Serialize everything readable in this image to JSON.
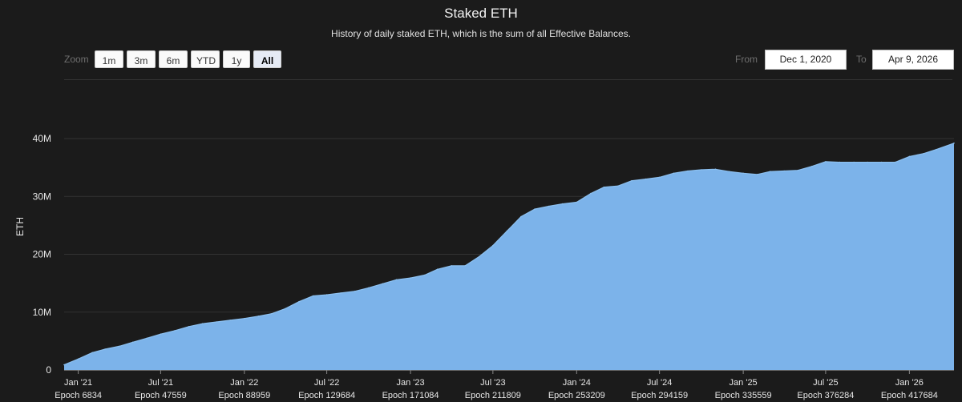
{
  "title": "Staked ETH",
  "subtitle": "History of daily staked ETH, which is the sum of all Effective Balances.",
  "zoom": {
    "label": "Zoom",
    "buttons": [
      "1m",
      "3m",
      "6m",
      "YTD",
      "1y",
      "All"
    ],
    "active": "All"
  },
  "range": {
    "from_label": "From",
    "from_value": "Dec 1, 2020",
    "to_label": "To",
    "to_value": "Apr 9, 2026"
  },
  "colors": {
    "background": "#1b1b1b",
    "series": "#7cb3ea",
    "gridline": "#333333"
  },
  "chart_data": {
    "type": "area",
    "title": "Staked ETH",
    "subtitle": "History of daily staked ETH, which is the sum of all Effective Balances.",
    "ylabel": "ETH",
    "xlabel": "",
    "ylim": [
      0,
      40000000
    ],
    "yticks": [
      {
        "value": 0,
        "label": "0"
      },
      {
        "value": 10000000,
        "label": "10M"
      },
      {
        "value": 20000000,
        "label": "20M"
      },
      {
        "value": 30000000,
        "label": "30M"
      },
      {
        "value": 40000000,
        "label": "40M"
      }
    ],
    "xlim": [
      "2020-12-01",
      "2026-04-09"
    ],
    "xticks": [
      {
        "date": "2021-01-01",
        "label": "Jan '21",
        "epoch": "Epoch 6834"
      },
      {
        "date": "2021-07-01",
        "label": "Jul '21",
        "epoch": "Epoch 47559"
      },
      {
        "date": "2022-01-01",
        "label": "Jan '22",
        "epoch": "Epoch 88959"
      },
      {
        "date": "2022-07-01",
        "label": "Jul '22",
        "epoch": "Epoch 129684"
      },
      {
        "date": "2023-01-01",
        "label": "Jan '23",
        "epoch": "Epoch 171084"
      },
      {
        "date": "2023-07-01",
        "label": "Jul '23",
        "epoch": "Epoch 211809"
      },
      {
        "date": "2024-01-01",
        "label": "Jan '24",
        "epoch": "Epoch 253209"
      },
      {
        "date": "2024-07-01",
        "label": "Jul '24",
        "epoch": "Epoch 294159"
      },
      {
        "date": "2025-01-01",
        "label": "Jan '25",
        "epoch": "Epoch 335559"
      },
      {
        "date": "2025-07-01",
        "label": "Jul '25",
        "epoch": "Epoch 376284"
      },
      {
        "date": "2026-01-01",
        "label": "Jan '26",
        "epoch": "Epoch 417684"
      }
    ],
    "grid": true,
    "series": [
      {
        "points": [
          {
            "x": "2020-12-01",
            "y": 900000
          },
          {
            "x": "2021-01-01",
            "y": 1900000
          },
          {
            "x": "2021-02-01",
            "y": 3000000
          },
          {
            "x": "2021-03-01",
            "y": 3600000
          },
          {
            "x": "2021-04-01",
            "y": 4100000
          },
          {
            "x": "2021-05-01",
            "y": 4800000
          },
          {
            "x": "2021-06-01",
            "y": 5500000
          },
          {
            "x": "2021-07-01",
            "y": 6200000
          },
          {
            "x": "2021-08-01",
            "y": 6800000
          },
          {
            "x": "2021-09-01",
            "y": 7500000
          },
          {
            "x": "2021-10-01",
            "y": 8000000
          },
          {
            "x": "2021-11-01",
            "y": 8300000
          },
          {
            "x": "2021-12-01",
            "y": 8600000
          },
          {
            "x": "2022-01-01",
            "y": 8900000
          },
          {
            "x": "2022-02-01",
            "y": 9300000
          },
          {
            "x": "2022-03-01",
            "y": 9700000
          },
          {
            "x": "2022-04-01",
            "y": 10600000
          },
          {
            "x": "2022-05-01",
            "y": 11800000
          },
          {
            "x": "2022-06-01",
            "y": 12800000
          },
          {
            "x": "2022-07-01",
            "y": 13000000
          },
          {
            "x": "2022-08-01",
            "y": 13300000
          },
          {
            "x": "2022-09-01",
            "y": 13600000
          },
          {
            "x": "2022-10-01",
            "y": 14200000
          },
          {
            "x": "2022-11-01",
            "y": 14900000
          },
          {
            "x": "2022-12-01",
            "y": 15600000
          },
          {
            "x": "2023-01-01",
            "y": 15900000
          },
          {
            "x": "2023-02-01",
            "y": 16400000
          },
          {
            "x": "2023-03-01",
            "y": 17400000
          },
          {
            "x": "2023-04-01",
            "y": 18000000
          },
          {
            "x": "2023-05-01",
            "y": 18000000
          },
          {
            "x": "2023-06-01",
            "y": 19600000
          },
          {
            "x": "2023-07-01",
            "y": 21500000
          },
          {
            "x": "2023-08-01",
            "y": 24000000
          },
          {
            "x": "2023-09-01",
            "y": 26500000
          },
          {
            "x": "2023-10-01",
            "y": 27800000
          },
          {
            "x": "2023-11-01",
            "y": 28300000
          },
          {
            "x": "2023-12-01",
            "y": 28700000
          },
          {
            "x": "2024-01-01",
            "y": 29000000
          },
          {
            "x": "2024-02-01",
            "y": 30500000
          },
          {
            "x": "2024-03-01",
            "y": 31600000
          },
          {
            "x": "2024-04-01",
            "y": 31800000
          },
          {
            "x": "2024-05-01",
            "y": 32700000
          },
          {
            "x": "2024-06-01",
            "y": 33000000
          },
          {
            "x": "2024-07-01",
            "y": 33300000
          },
          {
            "x": "2024-08-01",
            "y": 34000000
          },
          {
            "x": "2024-09-01",
            "y": 34400000
          },
          {
            "x": "2024-10-01",
            "y": 34600000
          },
          {
            "x": "2024-11-01",
            "y": 34700000
          },
          {
            "x": "2024-12-01",
            "y": 34300000
          },
          {
            "x": "2025-01-01",
            "y": 34000000
          },
          {
            "x": "2025-02-01",
            "y": 33800000
          },
          {
            "x": "2025-03-01",
            "y": 34300000
          },
          {
            "x": "2025-04-01",
            "y": 34400000
          },
          {
            "x": "2025-05-01",
            "y": 34500000
          },
          {
            "x": "2025-06-01",
            "y": 35200000
          },
          {
            "x": "2025-07-01",
            "y": 36000000
          },
          {
            "x": "2025-08-01",
            "y": 35900000
          },
          {
            "x": "2025-09-01",
            "y": 35900000
          },
          {
            "x": "2025-10-01",
            "y": 35900000
          },
          {
            "x": "2025-11-01",
            "y": 35900000
          },
          {
            "x": "2025-12-01",
            "y": 35900000
          },
          {
            "x": "2026-01-01",
            "y": 36900000
          },
          {
            "x": "2026-02-01",
            "y": 37400000
          },
          {
            "x": "2026-03-01",
            "y": 38100000
          },
          {
            "x": "2026-04-09",
            "y": 39200000
          }
        ]
      }
    ]
  }
}
